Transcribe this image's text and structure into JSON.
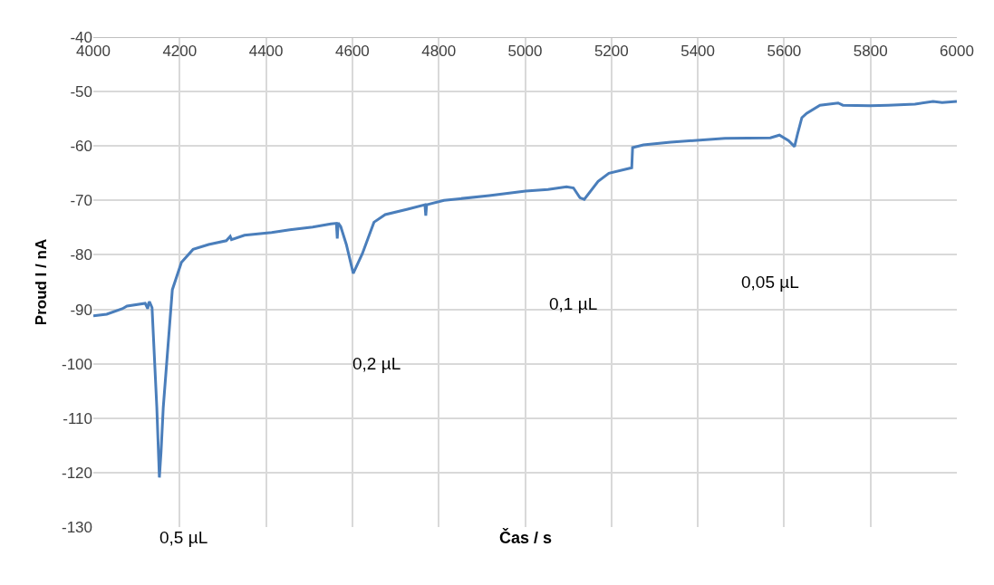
{
  "chart_data": {
    "type": "line",
    "xlabel": "Čas / s",
    "ylabel": "Proud I / nA",
    "x": [
      4000,
      4031,
      4067,
      4078,
      4120,
      4126,
      4128,
      4130,
      4136,
      4147,
      4153,
      4157,
      4162,
      4183,
      4204,
      4231,
      4267,
      4308,
      4317,
      4320,
      4350,
      4413,
      4455,
      4508,
      4550,
      4563,
      4565,
      4567,
      4573,
      4586,
      4602,
      4623,
      4650,
      4676,
      4728,
      4768,
      4770,
      4772,
      4812,
      4917,
      5001,
      5053,
      5096,
      5112,
      5127,
      5137,
      5169,
      5194,
      5247,
      5249,
      5274,
      5337,
      5463,
      5568,
      5589,
      5610,
      5624,
      5631,
      5641,
      5652,
      5683,
      5725,
      5736,
      5799,
      5841,
      5903,
      5945,
      5966,
      6000
    ],
    "series": [
      {
        "color": "#4a7ebb",
        "values": [
          -91.2,
          -90.9,
          -89.9,
          -89.4,
          -88.9,
          -89.9,
          -88.9,
          -88.6,
          -89.7,
          -108,
          -120.9,
          -116,
          -108,
          -86.4,
          -81.4,
          -79.0,
          -78.1,
          -77.4,
          -76.6,
          -77.2,
          -76.4,
          -75.9,
          -75.4,
          -74.9,
          -74.3,
          -74.2,
          -77,
          -74.1,
          -74.8,
          -78.1,
          -83.4,
          -79.8,
          -74,
          -72.6,
          -71.6,
          -70.8,
          -72.8,
          -70.8,
          -70,
          -69.1,
          -68.3,
          -68,
          -67.5,
          -67.7,
          -69.5,
          -69.8,
          -66.5,
          -65,
          -64,
          -60.3,
          -59.8,
          -59.3,
          -58.6,
          -58.5,
          -58,
          -59,
          -60.1,
          -57.8,
          -54.8,
          -54,
          -52.5,
          -52.1,
          -52.5,
          -52.6,
          -52.5,
          -52.3,
          -51.8,
          -52,
          -51.8
        ]
      }
    ],
    "xlim": [
      4000,
      6000
    ],
    "xticks": [
      4000,
      4200,
      4400,
      4600,
      4800,
      5000,
      5200,
      5400,
      5600,
      5800,
      6000
    ],
    "ylim": [
      -130,
      -40
    ],
    "yticks": [
      -130,
      -120,
      -110,
      -100,
      -90,
      -80,
      -70,
      -60,
      -50,
      -40
    ],
    "grid": true,
    "marker": "none",
    "line_style": "solid",
    "annotations": [
      "0,5 µL",
      "0,2 µL",
      "0,1 µL",
      "0,05 µL"
    ]
  }
}
